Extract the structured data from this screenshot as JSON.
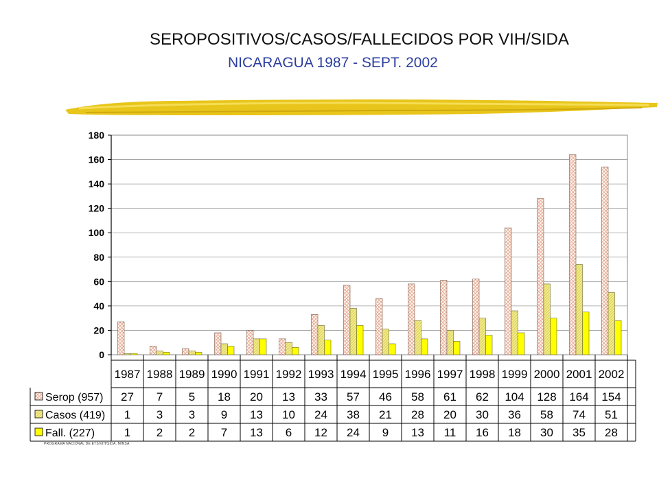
{
  "header": {
    "title": "SEROPOSITIVOS/CASOS/FALLECIDOS POR VIH/SIDA",
    "subtitle": "NICARAGUA 1987 - SEPT. 2002"
  },
  "footer": {
    "note": "PROGRAMA NACIONAL DE ETS/VIH/SIDA. MINSA"
  },
  "colors": {
    "accent_brush": "#e8c51a",
    "casos": "#f2ea84",
    "fall": "#ffff00",
    "serop_hatch": "#e2a58f"
  },
  "chart_data": {
    "type": "bar",
    "title": "SEROPOSITIVOS/CASOS/FALLECIDOS POR VIH/SIDA",
    "subtitle": "NICARAGUA 1987 - SEPT. 2002",
    "categories": [
      "1987",
      "1988",
      "1989",
      "1990",
      "1991",
      "1992",
      "1993",
      "1994",
      "1995",
      "1996",
      "1997",
      "1998",
      "1999",
      "2000",
      "2001",
      "2002"
    ],
    "series": [
      {
        "name": "Serop (957)",
        "pattern": "crosshatch",
        "values": [
          27,
          7,
          5,
          18,
          20,
          13,
          33,
          57,
          46,
          58,
          61,
          62,
          104,
          128,
          164,
          154
        ]
      },
      {
        "name": "Casos (419)",
        "pattern": "diagonal",
        "values": [
          1,
          3,
          3,
          9,
          13,
          10,
          24,
          38,
          21,
          28,
          20,
          30,
          36,
          58,
          74,
          51
        ]
      },
      {
        "name": "Fall. (227)",
        "pattern": "solid",
        "values": [
          1,
          2,
          2,
          7,
          13,
          6,
          12,
          24,
          9,
          13,
          11,
          16,
          18,
          30,
          35,
          28
        ]
      }
    ],
    "yticks": [
      "0",
      "20",
      "40",
      "60",
      "80",
      "100",
      "120",
      "140",
      "160",
      "180"
    ],
    "ylim": [
      0,
      180
    ],
    "xlabel": "",
    "ylabel": "",
    "grid": true,
    "legend": "data-table-left"
  }
}
